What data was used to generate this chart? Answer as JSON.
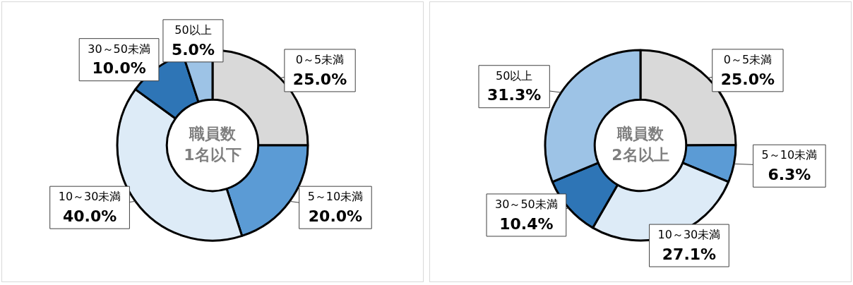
{
  "chart_data": [
    {
      "type": "donut",
      "title": "職員数\n1名以下",
      "categories": [
        "0～5未満",
        "5～10未満",
        "10～30未満",
        "30～50未満",
        "50以上"
      ],
      "values": [
        25.0,
        20.0,
        40.0,
        10.0,
        5.0
      ],
      "value_labels": [
        "25.0%",
        "20.0%",
        "40.0%",
        "10.0%",
        "5.0%"
      ],
      "colors": [
        "#d9d9d9",
        "#5b9bd5",
        "#ddebf7",
        "#2e75b6",
        "#9dc3e6"
      ],
      "legend": false
    },
    {
      "type": "donut",
      "title": "職員数\n2名以上",
      "categories": [
        "0～5未満",
        "5～10未満",
        "10～30未満",
        "30～50未満",
        "50以上"
      ],
      "values": [
        25.0,
        6.3,
        27.1,
        10.4,
        31.3
      ],
      "value_labels": [
        "25.0%",
        "6.3%",
        "27.1%",
        "10.4%",
        "31.3%"
      ],
      "colors": [
        "#d9d9d9",
        "#5b9bd5",
        "#ddebf7",
        "#2e75b6",
        "#9dc3e6"
      ],
      "legend": false
    }
  ]
}
